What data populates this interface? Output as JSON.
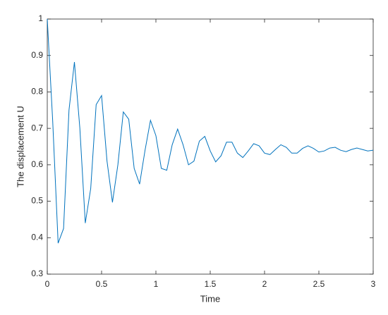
{
  "chart_data": {
    "type": "line",
    "xlabel": "Time",
    "ylabel": "The displacement U",
    "x": [
      0,
      0.05,
      0.1,
      0.15,
      0.2,
      0.25,
      0.3,
      0.35,
      0.4,
      0.45,
      0.5,
      0.55,
      0.6,
      0.65,
      0.7,
      0.75,
      0.8,
      0.85,
      0.9,
      0.95,
      1,
      1.05,
      1.1,
      1.15,
      1.2,
      1.25,
      1.3,
      1.35,
      1.4,
      1.45,
      1.5,
      1.55,
      1.6,
      1.65,
      1.7,
      1.75,
      1.8,
      1.85,
      1.9,
      1.95,
      2,
      2.05,
      2.1,
      2.15,
      2.2,
      2.25,
      2.3,
      2.35,
      2.4,
      2.45,
      2.5,
      2.55,
      2.6,
      2.65,
      2.7,
      2.75,
      2.8,
      2.85,
      2.9,
      2.95,
      3
    ],
    "series": [
      {
        "color": "#0072bd",
        "values": [
          1.0,
          0.72,
          0.385,
          0.425,
          0.75,
          0.882,
          0.7,
          0.44,
          0.535,
          0.765,
          0.79,
          0.61,
          0.497,
          0.6,
          0.745,
          0.725,
          0.59,
          0.547,
          0.64,
          0.722,
          0.68,
          0.59,
          0.585,
          0.655,
          0.698,
          0.655,
          0.6,
          0.61,
          0.665,
          0.678,
          0.638,
          0.608,
          0.625,
          0.662,
          0.662,
          0.632,
          0.62,
          0.638,
          0.658,
          0.652,
          0.632,
          0.628,
          0.642,
          0.655,
          0.648,
          0.632,
          0.632,
          0.645,
          0.652,
          0.645,
          0.635,
          0.638,
          0.646,
          0.648,
          0.64,
          0.636,
          0.642,
          0.646,
          0.642,
          0.638,
          0.64
        ]
      }
    ],
    "xlim": [
      0,
      3
    ],
    "xticks": [
      0,
      0.5,
      1,
      1.5,
      2,
      2.5,
      3
    ],
    "ylim": [
      0.3,
      1
    ],
    "yticks": [
      0.3,
      0.4,
      0.5,
      0.6,
      0.7,
      0.8,
      0.9,
      1
    ],
    "grid": false
  }
}
